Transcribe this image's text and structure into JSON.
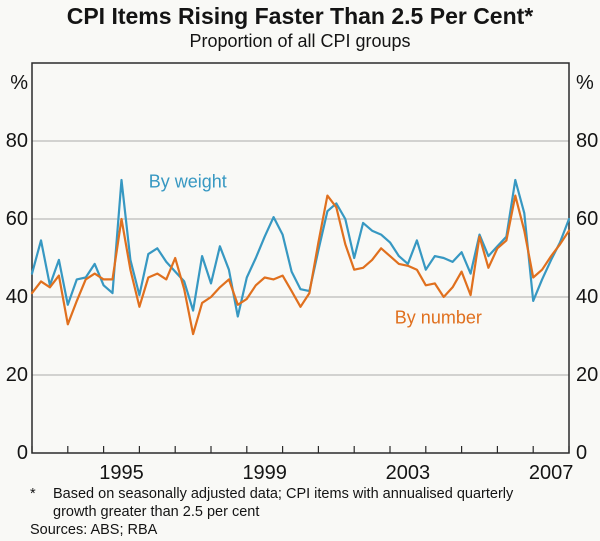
{
  "title": "CPI Items Rising Faster Than 2.5 Per Cent*",
  "subtitle": "Proportion of all CPI groups",
  "y_axis": {
    "unit": "%",
    "tick_labels": [
      0,
      20,
      40,
      60,
      80
    ]
  },
  "footnote": {
    "star": "*",
    "line1": "Based on seasonally adjusted data; CPI items with annualised quarterly",
    "line2": "growth greater than 2.5 per cent"
  },
  "sources": "Sources: ABS; RBA",
  "colors": {
    "by_weight": "#3798C2",
    "by_number": "#E0701E",
    "gridline": "#ABABAB",
    "frame": "#2B2B2B"
  },
  "chart_data": {
    "type": "line",
    "title": "CPI Items Rising Faster Than 2.5 Per Cent",
    "subtitle": "Proportion of all CPI groups",
    "ylabel": "%",
    "ylim": [
      0,
      100
    ],
    "y_gridlines": [
      20,
      40,
      60,
      80
    ],
    "x_range": [
      1993,
      2008
    ],
    "x_start": 1993.0,
    "x_step": 0.25,
    "x_tick_labels": [
      {
        "label": "1995",
        "year_center": 1995.5
      },
      {
        "label": "1999",
        "year_center": 1999.5
      },
      {
        "label": "2003",
        "year_center": 2003.5
      },
      {
        "label": "2007",
        "year_center": 2007.5
      }
    ],
    "legend_position": "inline-annotations",
    "grid": "horizontal-only",
    "series": [
      {
        "name": "By weight",
        "color": "#3798C2",
        "values": [
          46,
          54.5,
          43,
          49.5,
          38,
          44.5,
          45,
          48.5,
          43,
          41,
          70,
          49.5,
          40.5,
          51,
          52.5,
          49,
          46.5,
          44,
          36.5,
          50.5,
          43.5,
          53,
          47,
          35,
          45,
          50,
          55.5,
          60.5,
          56,
          46.5,
          42,
          41.5,
          52,
          62,
          64,
          60,
          50,
          59,
          57,
          56,
          54,
          50.5,
          48.5,
          54.5,
          47,
          50.5,
          50,
          49,
          51.5,
          46,
          56,
          50.5,
          53,
          55.5,
          70,
          61.5,
          39,
          44.5,
          49.5,
          54,
          60
        ]
      },
      {
        "name": "By number",
        "color": "#E0701E",
        "values": [
          41,
          44,
          42.5,
          45.5,
          33,
          39,
          44.5,
          46,
          44.5,
          44.5,
          60,
          47,
          37.5,
          45,
          46,
          44.5,
          50,
          42,
          30.5,
          38.5,
          40,
          42.5,
          44.5,
          38,
          39.5,
          43,
          45,
          44.5,
          45.5,
          41.5,
          37.5,
          41,
          54,
          66,
          63,
          53.5,
          47,
          47.5,
          49.5,
          52.5,
          50.5,
          48.5,
          48,
          47,
          43,
          43.5,
          40,
          42.5,
          46.5,
          40.5,
          55.5,
          47.5,
          52.5,
          54.5,
          66,
          57,
          45,
          47,
          50.5,
          53.5,
          57
        ]
      }
    ],
    "annotations": [
      {
        "text": "By weight",
        "x": 1997.35,
        "y": 69.5,
        "series": "By weight"
      },
      {
        "text": "By number",
        "x": 2004.35,
        "y": 34.5,
        "series": "By number"
      }
    ]
  }
}
